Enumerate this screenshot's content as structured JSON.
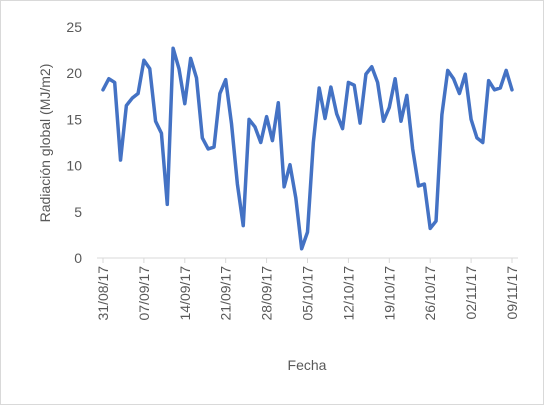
{
  "chart_data": {
    "type": "line",
    "x_label": "Fecha",
    "y_label": "Radiación global (MJ/m2)",
    "color": "#4472c4",
    "categories": [
      "31/08/17",
      null,
      null,
      null,
      null,
      null,
      null,
      "07/09/17",
      null,
      null,
      null,
      null,
      null,
      null,
      "14/09/17",
      null,
      null,
      null,
      null,
      null,
      null,
      "21/09/17",
      null,
      null,
      null,
      null,
      null,
      null,
      "28/09/17",
      null,
      null,
      null,
      null,
      null,
      null,
      "05/10/17",
      null,
      null,
      null,
      null,
      null,
      null,
      "12/10/17",
      null,
      null,
      null,
      null,
      null,
      null,
      "19/10/17",
      null,
      null,
      null,
      null,
      null,
      null,
      "26/10/17",
      null,
      null,
      null,
      null,
      null,
      null,
      "02/11/17",
      null,
      null,
      null,
      null,
      null,
      null,
      "09/11/17"
    ],
    "values": [
      18.2,
      19.4,
      19.0,
      10.6,
      16.5,
      17.3,
      17.8,
      21.4,
      20.5,
      14.8,
      13.5,
      5.8,
      22.7,
      20.5,
      16.7,
      21.6,
      19.5,
      13.0,
      11.8,
      12.0,
      17.8,
      19.3,
      14.5,
      8.0,
      3.5,
      15.0,
      14.2,
      12.5,
      15.3,
      12.7,
      16.8,
      7.7,
      10.1,
      6.5,
      1.0,
      2.8,
      12.5,
      18.4,
      15.1,
      18.5,
      15.6,
      14.0,
      19.0,
      18.7,
      14.6,
      19.9,
      20.7,
      19.0,
      14.8,
      16.3,
      19.4,
      14.8,
      17.6,
      11.8,
      7.8,
      8.0,
      3.2,
      4.0,
      15.5,
      20.3,
      19.4,
      17.8,
      19.9,
      15.0,
      13.0,
      12.5,
      19.2,
      18.2,
      18.4,
      20.3,
      18.2
    ],
    "ylim": [
      0,
      25
    ],
    "yticks": [
      0,
      5,
      10,
      15,
      20,
      25
    ],
    "grid": false
  }
}
